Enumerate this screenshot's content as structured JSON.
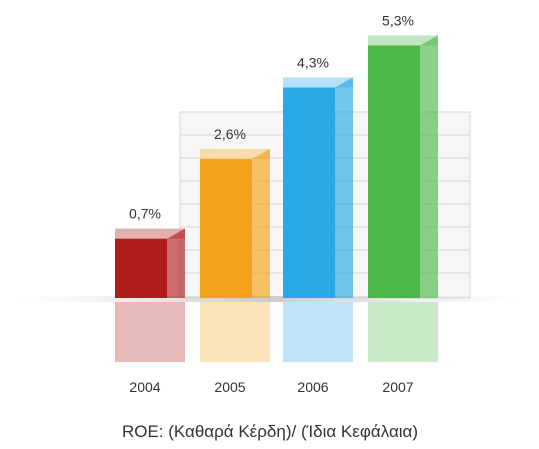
{
  "chart_data": {
    "type": "bar3d",
    "categories": [
      "2004",
      "2005",
      "2006",
      "2007"
    ],
    "values": [
      0.7,
      2.6,
      4.3,
      5.3
    ],
    "value_labels": [
      "0,7%",
      "2,6%",
      "4,3%",
      "5,3%"
    ],
    "colors": [
      "#b01c1c",
      "#f2a31b",
      "#2aa7e6",
      "#4db848"
    ],
    "x_label": "ROE: (Καθαρά Κέρδη)/ (Ίδια Κεφάλαια)"
  }
}
